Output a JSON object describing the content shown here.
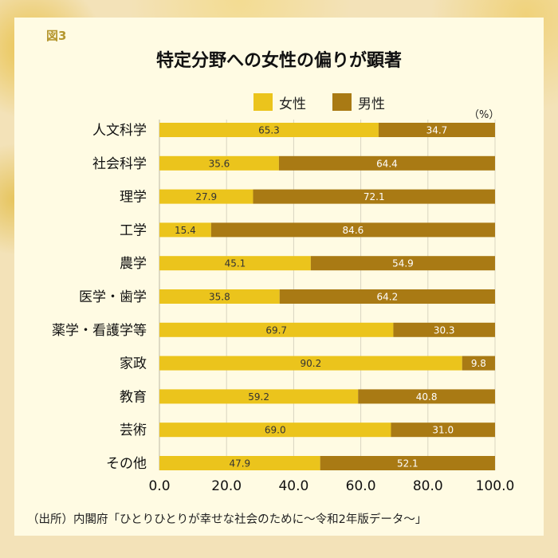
{
  "figure_label": "図3",
  "source_note": "（出所）内閣府「ひとりひとりが幸せな社会のために～令和2年版データ～」",
  "colors": {
    "female": "#ebc41c",
    "male": "#a97a14"
  },
  "chart_data": {
    "type": "bar",
    "orientation": "horizontal",
    "stacked": true,
    "title": "特定分野への女性の偏りが顕著",
    "unit": "（%）",
    "categories": [
      "人文科学",
      "社会科学",
      "理学",
      "工学",
      "農学",
      "医学・歯学",
      "薬学・看護学等",
      "家政",
      "教育",
      "芸術",
      "その他"
    ],
    "series": [
      {
        "name": "女性",
        "values": [
          65.3,
          35.6,
          27.9,
          15.4,
          45.1,
          35.8,
          69.7,
          90.2,
          59.2,
          69.0,
          47.9
        ]
      },
      {
        "name": "男性",
        "values": [
          34.7,
          64.4,
          72.1,
          84.6,
          54.9,
          64.2,
          30.3,
          9.8,
          40.8,
          31.0,
          52.1
        ]
      }
    ],
    "value_labels": [
      [
        "65.3",
        "35.6",
        "27.9",
        "15.4",
        "45.1",
        "35.8",
        "69.7",
        "90.2",
        "59.2",
        "69.0",
        "47.9"
      ],
      [
        "34.7",
        "64.4",
        "72.1",
        "84.6",
        "54.9",
        "64.2",
        "30.3",
        "9.8",
        "40.8",
        "31.0",
        "52.1"
      ]
    ],
    "xlim": [
      0,
      100
    ],
    "xticks": [
      "0.0",
      "20.0",
      "40.0",
      "60.0",
      "80.0",
      "100.0"
    ],
    "grid": true,
    "legend_position": "top"
  }
}
